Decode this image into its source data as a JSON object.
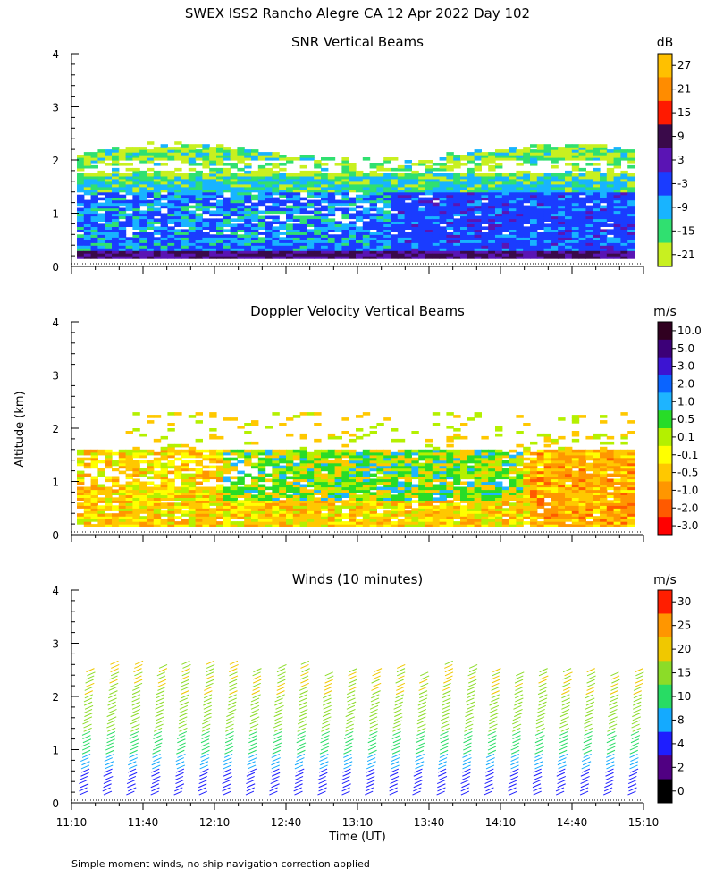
{
  "figure_title": "SWEX ISS2 Rancho Alegre CA  12 Apr 2022 Day 102",
  "footnote": "Simple moment winds, no ship navigation correction applied",
  "y_axis_label": "Altitude (km)",
  "chart_data": [
    {
      "type": "heatmap",
      "title": "SNR Vertical Beams",
      "ylim": [
        0,
        4
      ],
      "yticks": [
        "0",
        "1",
        "2",
        "3",
        "4"
      ],
      "colorbar": {
        "unit": "dB",
        "labels": [
          "27",
          "21",
          "15",
          "9",
          "3",
          "-3",
          "-9",
          "-15",
          "-21"
        ],
        "colors": [
          "#ffc000",
          "#ff8c00",
          "#ff1a00",
          "#3a0a4a",
          "#5a14b4",
          "#1a3cff",
          "#18b4ff",
          "#30e070",
          "#c8f020"
        ]
      }
    },
    {
      "type": "heatmap",
      "title": "Doppler Velocity Vertical Beams",
      "ylim": [
        0,
        4
      ],
      "yticks": [
        "0",
        "1",
        "2",
        "3",
        "4"
      ],
      "colorbar": {
        "unit": "m/s",
        "labels": [
          "10.0",
          "5.0",
          "3.0",
          "2.0",
          "1.0",
          "0.5",
          "0.1",
          "-0.1",
          "-0.5",
          "-1.0",
          "-2.0",
          "-3.0"
        ],
        "colors": [
          "#300020",
          "#3c0078",
          "#3c14d2",
          "#0a64ff",
          "#1eb4ff",
          "#28dc28",
          "#b4f000",
          "#ffff00",
          "#ffc800",
          "#ff9600",
          "#ff5a00",
          "#ff0000"
        ]
      }
    },
    {
      "type": "scatter",
      "title": "Winds (10 minutes)",
      "ylim": [
        0,
        4
      ],
      "yticks": [
        "0",
        "1",
        "2",
        "3",
        "4"
      ],
      "xlabel": "Time (UT)",
      "xticks": [
        "11:10",
        "11:40",
        "12:10",
        "12:40",
        "13:10",
        "13:40",
        "14:10",
        "14:40",
        "15:10"
      ],
      "colorbar": {
        "unit": "m/s",
        "labels": [
          "30",
          "25",
          "20",
          "15",
          "10",
          "8",
          "4",
          "2",
          "0"
        ],
        "colors": [
          "#ff1e00",
          "#ff9600",
          "#f0c800",
          "#8cdc28",
          "#28dc64",
          "#14aaff",
          "#1e1eff",
          "#500082",
          "#000000"
        ]
      }
    }
  ]
}
